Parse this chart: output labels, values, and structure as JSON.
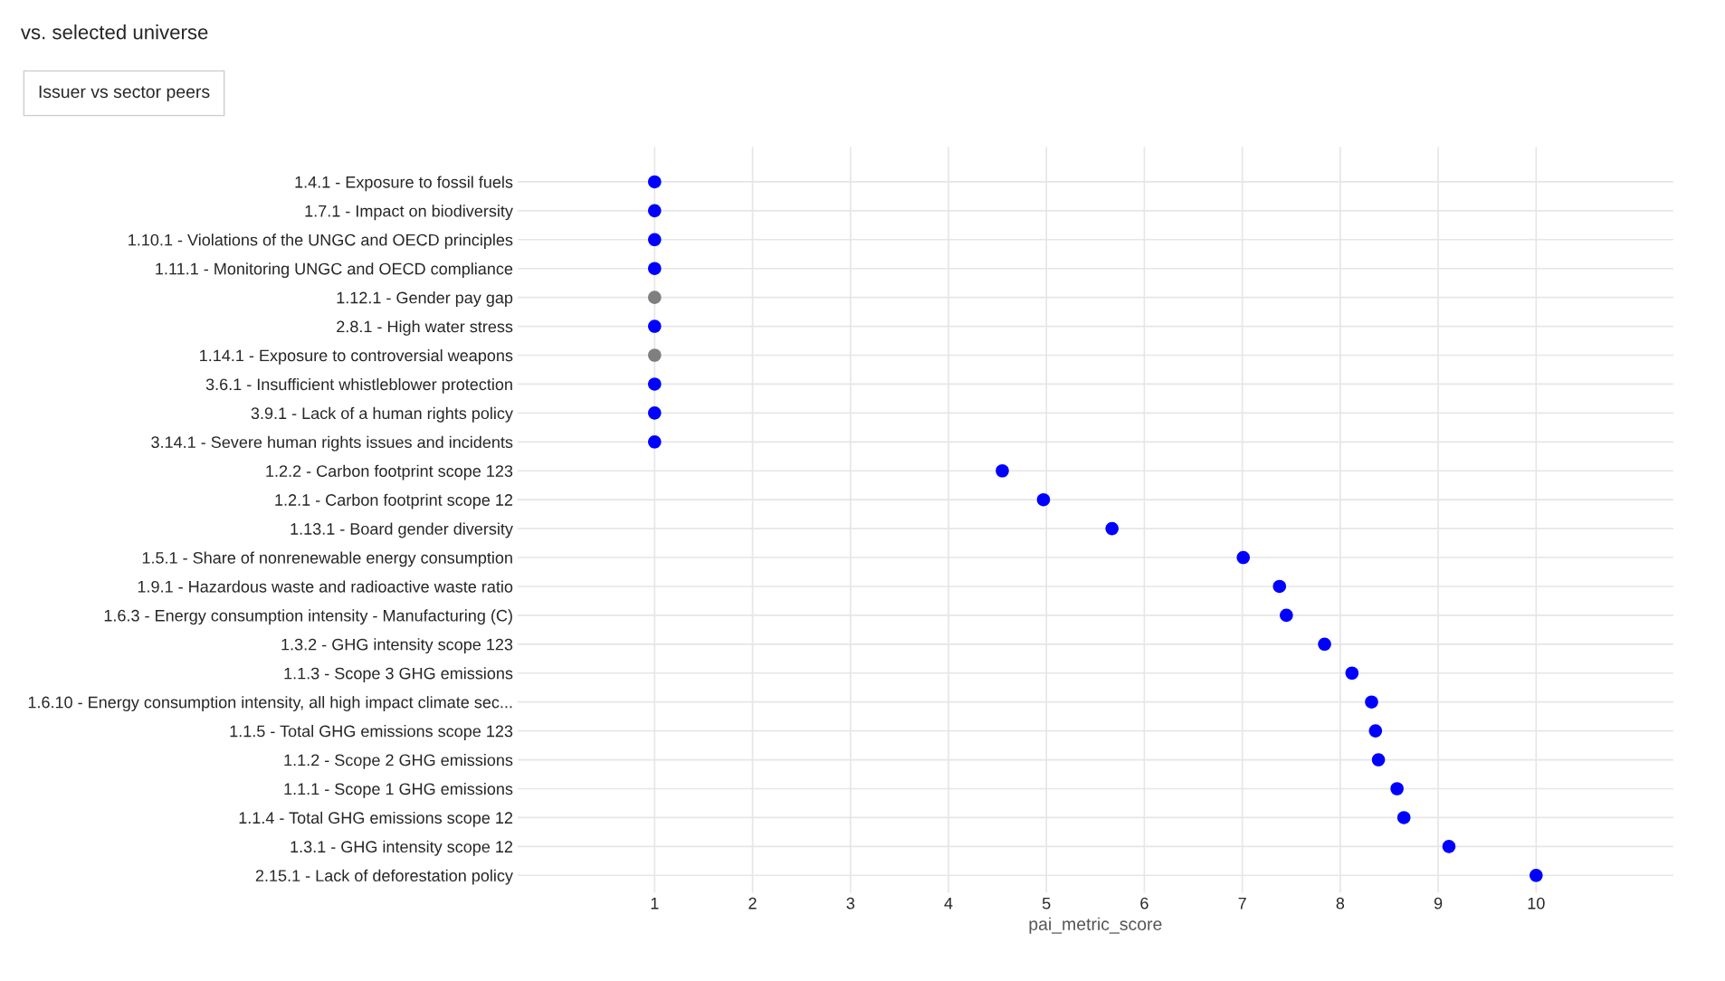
{
  "chart_data": {
    "type": "scatter",
    "title": "vs. selected universe",
    "subtitle": "Issuer vs sector peers",
    "xlabel": "pai_metric_score",
    "orientation": "horizontal",
    "categories": [
      "1.4.1 - Exposure to fossil fuels",
      "1.7.1 - Impact on biodiversity",
      "1.10.1 - Violations of the UNGC and OECD principles",
      "1.11.1 - Monitoring UNGC and OECD compliance",
      "1.12.1 - Gender pay gap",
      "2.8.1 - High water stress",
      "1.14.1 - Exposure to controversial weapons",
      "3.6.1 - Insufficient whistleblower protection",
      "3.9.1 - Lack of a human rights policy",
      "3.14.1 - Severe human rights issues and incidents",
      "1.2.2 - Carbon footprint scope 123",
      "1.2.1 - Carbon footprint scope 12",
      "1.13.1 - Board gender diversity",
      "1.5.1 - Share of nonrenewable energy consumption",
      "1.9.1 - Hazardous waste and radioactive waste ratio",
      "1.6.3 - Energy consumption intensity - Manufacturing (C)",
      "1.3.2 - GHG intensity scope 123",
      "1.1.3 - Scope 3 GHG emissions",
      "1.6.10 - Energy consumption intensity, all high impact climate sec...",
      "1.1.5 - Total GHG emissions scope 123",
      "1.1.2 - Scope 2 GHG emissions",
      "1.1.1 - Scope 1 GHG emissions",
      "1.1.4 - Total GHG emissions scope 12",
      "1.3.1 - GHG intensity scope 12",
      "2.15.1 - Lack of deforestation policy"
    ],
    "series": [
      {
        "values": [
          1,
          1,
          1,
          1,
          1,
          1,
          1,
          1,
          1,
          1,
          4.55,
          4.97,
          5.67,
          7.01,
          7.38,
          7.45,
          7.84,
          8.12,
          8.32,
          8.36,
          8.39,
          8.58,
          8.65,
          9.11,
          10
        ],
        "colors": [
          "#0000ff",
          "#0000ff",
          "#0000ff",
          "#0000ff",
          "#7f7f7f",
          "#0000ff",
          "#7f7f7f",
          "#0000ff",
          "#0000ff",
          "#0000ff",
          "#0000ff",
          "#0000ff",
          "#0000ff",
          "#0000ff",
          "#0000ff",
          "#0000ff",
          "#0000ff",
          "#0000ff",
          "#0000ff",
          "#0000ff",
          "#0000ff",
          "#0000ff",
          "#0000ff",
          "#0000ff",
          "#0000ff"
        ]
      }
    ],
    "xlim": [
      -0.4,
      11.4
    ],
    "xticks": [
      1,
      2,
      3,
      4,
      5,
      6,
      7,
      8,
      9,
      10
    ],
    "grid": true,
    "marker": "circle"
  }
}
